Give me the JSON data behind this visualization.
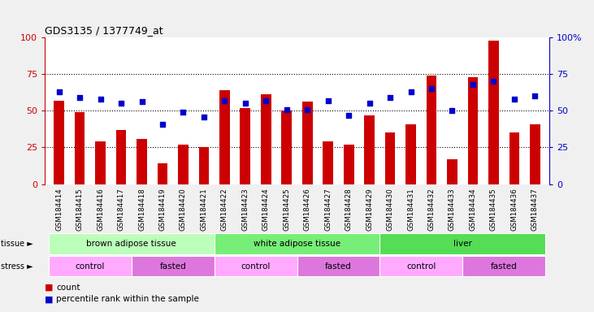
{
  "title": "GDS3135 / 1377749_at",
  "samples": [
    "GSM184414",
    "GSM184415",
    "GSM184416",
    "GSM184417",
    "GSM184418",
    "GSM184419",
    "GSM184420",
    "GSM184421",
    "GSM184422",
    "GSM184423",
    "GSM184424",
    "GSM184425",
    "GSM184426",
    "GSM184427",
    "GSM184428",
    "GSM184429",
    "GSM184430",
    "GSM184431",
    "GSM184432",
    "GSM184433",
    "GSM184434",
    "GSM184435",
    "GSM184436",
    "GSM184437"
  ],
  "counts": [
    57,
    49,
    29,
    37,
    31,
    14,
    27,
    25,
    64,
    52,
    61,
    50,
    56,
    29,
    27,
    47,
    35,
    41,
    74,
    17,
    73,
    98,
    35,
    41
  ],
  "percentiles": [
    63,
    59,
    58,
    55,
    56,
    41,
    49,
    46,
    57,
    55,
    57,
    51,
    51,
    57,
    47,
    55,
    59,
    63,
    65,
    50,
    68,
    70,
    58,
    60
  ],
  "bar_color": "#cc0000",
  "dot_color": "#0000cc",
  "tissue_groups": [
    {
      "label": "brown adipose tissue",
      "start": 0,
      "end": 7,
      "color": "#bbffbb"
    },
    {
      "label": "white adipose tissue",
      "start": 8,
      "end": 15,
      "color": "#77ee77"
    },
    {
      "label": "liver",
      "start": 16,
      "end": 23,
      "color": "#55dd55"
    }
  ],
  "stress_groups": [
    {
      "label": "control",
      "start": 0,
      "end": 3,
      "color": "#ffaaff"
    },
    {
      "label": "fasted",
      "start": 4,
      "end": 7,
      "color": "#dd77dd"
    },
    {
      "label": "control",
      "start": 8,
      "end": 11,
      "color": "#ffaaff"
    },
    {
      "label": "fasted",
      "start": 12,
      "end": 15,
      "color": "#dd77dd"
    },
    {
      "label": "control",
      "start": 16,
      "end": 19,
      "color": "#ffaaff"
    },
    {
      "label": "fasted",
      "start": 20,
      "end": 23,
      "color": "#dd77dd"
    }
  ],
  "ylim": [
    0,
    100
  ],
  "yticks": [
    0,
    25,
    50,
    75,
    100
  ],
  "bg_color": "#f0f0f0",
  "plot_bg": "#ffffff",
  "xtick_bg": "#d8d8d8"
}
